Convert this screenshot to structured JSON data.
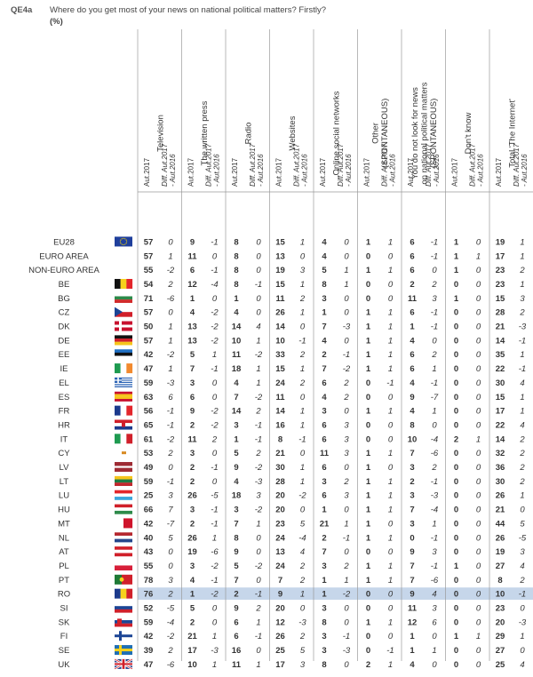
{
  "header": {
    "question_id": "QE4a",
    "question_text": "Where do you get most of your news on national political matters? Firstly?",
    "unit": "(%)"
  },
  "chart_data": {
    "type": "table",
    "columns": [
      {
        "label_lines": [
          "Television"
        ]
      },
      {
        "label_lines": [
          "The written press"
        ]
      },
      {
        "label_lines": [
          "Radio"
        ]
      },
      {
        "label_lines": [
          "Websites"
        ]
      },
      {
        "label_lines": [
          "Online social networks"
        ]
      },
      {
        "label_lines": [
          "Other",
          "(SPONTANEOUS)"
        ]
      },
      {
        "label_lines": [
          "You do not look for news",
          "on national political matters",
          "(SPONTANEOUS)"
        ]
      },
      {
        "label_lines": [
          "Don't know"
        ]
      },
      {
        "label_lines": [
          "Total 'The Internet'"
        ]
      }
    ],
    "subheaders": {
      "level": "Aut.2017",
      "diff_line1": "Diff. Aut.2017",
      "diff_line2": "- Aut.2016"
    },
    "highlight_row": "RO",
    "rows": [
      {
        "label": "EU28",
        "flag": "eu",
        "values": [
          57,
          0,
          9,
          -1,
          8,
          0,
          15,
          1,
          4,
          0,
          1,
          1,
          6,
          -1,
          1,
          0,
          19,
          1
        ]
      },
      {
        "label": "EURO AREA",
        "flag": "",
        "values": [
          57,
          1,
          11,
          0,
          8,
          0,
          13,
          0,
          4,
          0,
          0,
          0,
          6,
          -1,
          1,
          1,
          17,
          1
        ]
      },
      {
        "label": "NON-EURO AREA",
        "flag": "",
        "values": [
          55,
          -2,
          6,
          -1,
          8,
          0,
          19,
          3,
          5,
          1,
          1,
          1,
          6,
          0,
          1,
          0,
          23,
          2
        ]
      },
      {
        "label": "BE",
        "flag": "be",
        "values": [
          54,
          2,
          12,
          -4,
          8,
          -1,
          15,
          1,
          8,
          1,
          0,
          0,
          2,
          2,
          0,
          0,
          23,
          1
        ]
      },
      {
        "label": "BG",
        "flag": "bg",
        "values": [
          71,
          -6,
          1,
          0,
          1,
          0,
          11,
          2,
          3,
          0,
          0,
          0,
          11,
          3,
          1,
          0,
          15,
          3
        ]
      },
      {
        "label": "CZ",
        "flag": "cz",
        "values": [
          57,
          0,
          4,
          -2,
          4,
          0,
          26,
          1,
          1,
          0,
          1,
          1,
          6,
          -1,
          0,
          0,
          28,
          2
        ]
      },
      {
        "label": "DK",
        "flag": "dk",
        "values": [
          50,
          1,
          13,
          -2,
          14,
          4,
          14,
          0,
          7,
          -3,
          1,
          1,
          1,
          -1,
          0,
          0,
          21,
          -3
        ]
      },
      {
        "label": "DE",
        "flag": "de",
        "values": [
          57,
          1,
          13,
          -2,
          10,
          1,
          10,
          -1,
          4,
          0,
          1,
          1,
          4,
          0,
          0,
          0,
          14,
          -1
        ]
      },
      {
        "label": "EE",
        "flag": "ee",
        "values": [
          42,
          -2,
          5,
          1,
          11,
          -2,
          33,
          2,
          2,
          -1,
          1,
          1,
          6,
          2,
          0,
          0,
          35,
          1
        ]
      },
      {
        "label": "IE",
        "flag": "ie",
        "values": [
          47,
          1,
          7,
          -1,
          18,
          1,
          15,
          1,
          7,
          -2,
          1,
          1,
          6,
          1,
          0,
          0,
          22,
          -1
        ]
      },
      {
        "label": "EL",
        "flag": "el",
        "values": [
          59,
          -3,
          3,
          0,
          4,
          1,
          24,
          2,
          6,
          2,
          0,
          -1,
          4,
          -1,
          0,
          0,
          30,
          4
        ]
      },
      {
        "label": "ES",
        "flag": "es",
        "values": [
          63,
          6,
          6,
          0,
          7,
          -2,
          11,
          0,
          4,
          2,
          0,
          0,
          9,
          -7,
          0,
          0,
          15,
          1
        ]
      },
      {
        "label": "FR",
        "flag": "fr",
        "values": [
          56,
          -1,
          9,
          -2,
          14,
          2,
          14,
          1,
          3,
          0,
          1,
          1,
          4,
          1,
          0,
          0,
          17,
          1
        ]
      },
      {
        "label": "HR",
        "flag": "hr",
        "values": [
          65,
          -1,
          2,
          -2,
          3,
          -1,
          16,
          1,
          6,
          3,
          0,
          0,
          8,
          0,
          0,
          0,
          22,
          4
        ]
      },
      {
        "label": "IT",
        "flag": "it",
        "values": [
          61,
          -2,
          11,
          2,
          1,
          -1,
          8,
          -1,
          6,
          3,
          0,
          0,
          10,
          -4,
          2,
          1,
          14,
          2
        ]
      },
      {
        "label": "CY",
        "flag": "cy",
        "values": [
          53,
          2,
          3,
          0,
          5,
          2,
          21,
          0,
          11,
          3,
          1,
          1,
          7,
          -6,
          0,
          0,
          32,
          2
        ]
      },
      {
        "label": "LV",
        "flag": "lv",
        "values": [
          49,
          0,
          2,
          -1,
          9,
          -2,
          30,
          1,
          6,
          0,
          1,
          0,
          3,
          2,
          0,
          0,
          36,
          2
        ]
      },
      {
        "label": "LT",
        "flag": "lt",
        "values": [
          59,
          -1,
          2,
          0,
          4,
          -3,
          28,
          1,
          3,
          2,
          1,
          1,
          2,
          -1,
          0,
          0,
          30,
          2
        ]
      },
      {
        "label": "LU",
        "flag": "lu",
        "values": [
          25,
          3,
          26,
          -5,
          18,
          3,
          20,
          -2,
          6,
          3,
          1,
          1,
          3,
          -3,
          0,
          0,
          26,
          1
        ]
      },
      {
        "label": "HU",
        "flag": "hu",
        "values": [
          66,
          7,
          3,
          -1,
          3,
          -2,
          20,
          0,
          1,
          0,
          1,
          1,
          7,
          -4,
          0,
          0,
          21,
          0
        ]
      },
      {
        "label": "MT",
        "flag": "mt",
        "values": [
          42,
          -7,
          2,
          -1,
          7,
          1,
          23,
          5,
          21,
          1,
          1,
          0,
          3,
          1,
          0,
          0,
          44,
          5
        ]
      },
      {
        "label": "NL",
        "flag": "nl",
        "values": [
          40,
          5,
          26,
          1,
          8,
          0,
          24,
          -4,
          2,
          -1,
          1,
          1,
          0,
          -1,
          0,
          0,
          26,
          -5
        ]
      },
      {
        "label": "AT",
        "flag": "at",
        "values": [
          43,
          0,
          19,
          -6,
          9,
          0,
          13,
          4,
          7,
          0,
          0,
          0,
          9,
          3,
          0,
          0,
          19,
          3
        ]
      },
      {
        "label": "PL",
        "flag": "pl",
        "values": [
          55,
          0,
          3,
          -2,
          5,
          -2,
          24,
          2,
          3,
          2,
          1,
          1,
          7,
          -1,
          1,
          0,
          27,
          4
        ]
      },
      {
        "label": "PT",
        "flag": "pt",
        "values": [
          78,
          3,
          4,
          -1,
          7,
          0,
          7,
          2,
          1,
          1,
          1,
          1,
          7,
          -6,
          0,
          0,
          8,
          2
        ]
      },
      {
        "label": "RO",
        "flag": "ro",
        "values": [
          76,
          2,
          1,
          -2,
          2,
          -1,
          9,
          1,
          1,
          -2,
          0,
          0,
          9,
          4,
          0,
          0,
          10,
          -1
        ]
      },
      {
        "label": "SI",
        "flag": "si",
        "values": [
          52,
          -5,
          5,
          0,
          9,
          2,
          20,
          0,
          3,
          0,
          0,
          0,
          11,
          3,
          0,
          0,
          23,
          0
        ]
      },
      {
        "label": "SK",
        "flag": "sk",
        "values": [
          59,
          -4,
          2,
          0,
          6,
          1,
          12,
          -3,
          8,
          0,
          1,
          1,
          12,
          6,
          0,
          0,
          20,
          -3
        ]
      },
      {
        "label": "FI",
        "flag": "fi",
        "values": [
          42,
          -2,
          21,
          1,
          6,
          -1,
          26,
          2,
          3,
          -1,
          0,
          0,
          1,
          0,
          1,
          1,
          29,
          1
        ]
      },
      {
        "label": "SE",
        "flag": "se",
        "values": [
          39,
          2,
          17,
          -3,
          16,
          0,
          25,
          5,
          3,
          -3,
          0,
          -1,
          1,
          1,
          0,
          0,
          27,
          0
        ]
      },
      {
        "label": "UK",
        "flag": "uk",
        "values": [
          47,
          -6,
          10,
          1,
          11,
          1,
          17,
          3,
          8,
          0,
          2,
          1,
          4,
          0,
          0,
          0,
          25,
          4
        ]
      }
    ]
  },
  "colors": {
    "text": "#333333",
    "grid": "#9a9a9a",
    "highlight": "#c6d6ea"
  }
}
